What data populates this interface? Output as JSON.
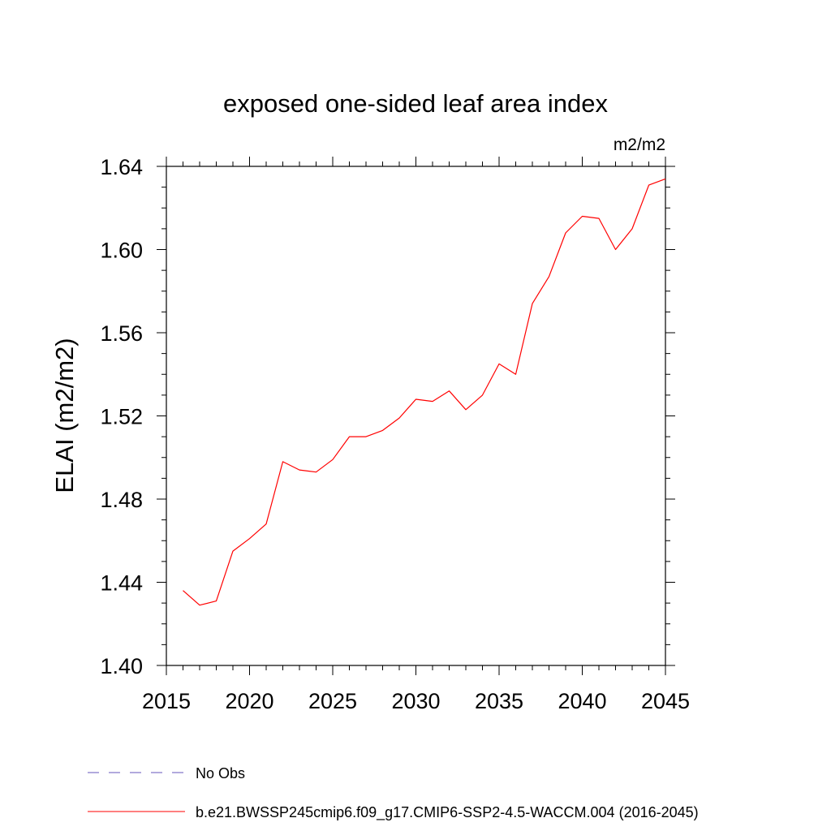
{
  "chart_data": {
    "type": "line",
    "title": "exposed one-sided leaf area index",
    "units_label": "m2/m2",
    "ylabel": "ELAI  (m2/m2)",
    "xlabel": "",
    "xlim": [
      2015,
      2045
    ],
    "ylim": [
      1.4,
      1.64
    ],
    "x_ticks": [
      2015,
      2020,
      2025,
      2030,
      2035,
      2040,
      2045
    ],
    "x_tick_labels": [
      "2015",
      "2020",
      "2025",
      "2030",
      "2035",
      "2040",
      "2045"
    ],
    "y_ticks": [
      1.4,
      1.44,
      1.48,
      1.52,
      1.56,
      1.6,
      1.64
    ],
    "y_tick_labels": [
      "1.40",
      "1.44",
      "1.48",
      "1.52",
      "1.56",
      "1.60",
      "1.64"
    ],
    "grid": false,
    "legend_position": "bottom",
    "series": [
      {
        "name": "b.e21.BWSSP245cmip6.f09_g17.CMIP6-SSP2-4.5-WACCM.004 (2016-2045)",
        "color": "#ff0000",
        "style": "solid",
        "x": [
          2016,
          2017,
          2018,
          2019,
          2020,
          2021,
          2022,
          2023,
          2024,
          2025,
          2026,
          2027,
          2028,
          2029,
          2030,
          2031,
          2032,
          2033,
          2034,
          2035,
          2036,
          2037,
          2038,
          2039,
          2040,
          2041,
          2042,
          2043,
          2044,
          2045
        ],
        "y": [
          1.436,
          1.429,
          1.431,
          1.455,
          1.461,
          1.468,
          1.498,
          1.494,
          1.493,
          1.499,
          1.51,
          1.51,
          1.513,
          1.519,
          1.528,
          1.527,
          1.532,
          1.523,
          1.53,
          1.545,
          1.54,
          1.574,
          1.587,
          1.608,
          1.616,
          1.615,
          1.6,
          1.61,
          1.631,
          1.634
        ]
      }
    ],
    "legend": [
      {
        "label": "No Obs",
        "color": "#6655bb",
        "style": "dashed"
      },
      {
        "label": "b.e21.BWSSP245cmip6.f09_g17.CMIP6-SSP2-4.5-WACCM.004 (2016-2045)",
        "color": "#ff0000",
        "style": "solid"
      }
    ]
  }
}
